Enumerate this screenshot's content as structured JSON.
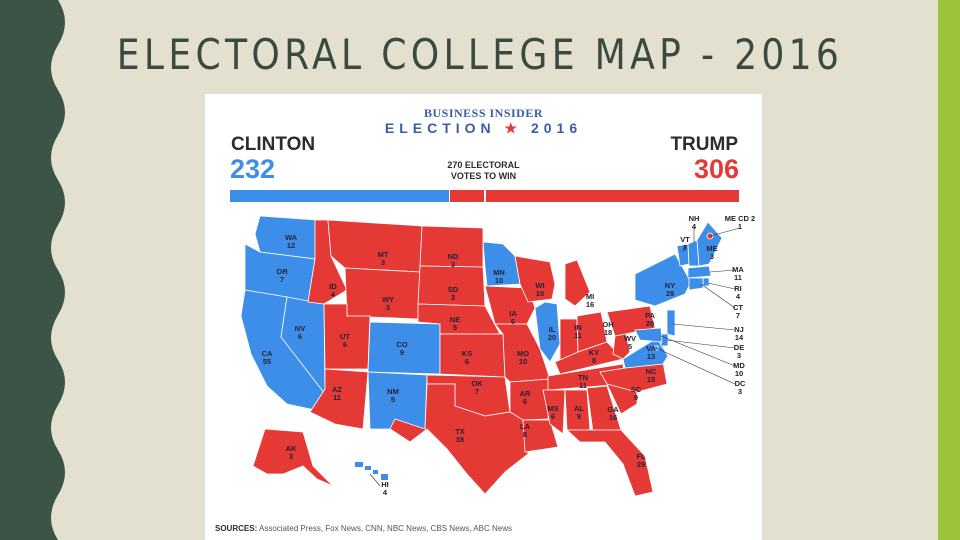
{
  "slide": {
    "title": "ELECTORAL COLLEGE MAP - 2016",
    "colors": {
      "background": "#e3e0cf",
      "title": "#3b4a3f",
      "left_band": "#3b5446",
      "right_bar": "#9bc33c"
    }
  },
  "infographic": {
    "publisher": "BUSINESS INSIDER",
    "election_word": "ELECTION",
    "election_year": "2016",
    "clinton": {
      "name": "CLINTON",
      "votes": "232",
      "color": "#3d8ee8"
    },
    "trump": {
      "name": "TRUMP",
      "votes": "306",
      "color": "#e53935"
    },
    "to_win_line1": "270 ELECTORAL",
    "to_win_line2": "VOTES TO WIN",
    "to_win_votes": 270,
    "total_votes": 538,
    "sources_label": "SOURCES:",
    "sources_text": "Associated Press, Fox News, CNN, NBC News, CBS News, ABC News"
  },
  "map": {
    "party_colors": {
      "D": "#3d8ee8",
      "R": "#e53935"
    },
    "states": [
      {
        "abbr": "WA",
        "ev": "12",
        "party": "D"
      },
      {
        "abbr": "OR",
        "ev": "7",
        "party": "D"
      },
      {
        "abbr": "CA",
        "ev": "55",
        "party": "D"
      },
      {
        "abbr": "NV",
        "ev": "6",
        "party": "D"
      },
      {
        "abbr": "ID",
        "ev": "4",
        "party": "R"
      },
      {
        "abbr": "MT",
        "ev": "3",
        "party": "R"
      },
      {
        "abbr": "WY",
        "ev": "3",
        "party": "R"
      },
      {
        "abbr": "UT",
        "ev": "6",
        "party": "R"
      },
      {
        "abbr": "CO",
        "ev": "9",
        "party": "D"
      },
      {
        "abbr": "AZ",
        "ev": "11",
        "party": "R"
      },
      {
        "abbr": "NM",
        "ev": "5",
        "party": "D"
      },
      {
        "abbr": "ND",
        "ev": "3",
        "party": "R"
      },
      {
        "abbr": "SD",
        "ev": "3",
        "party": "R"
      },
      {
        "abbr": "NE",
        "ev": "5",
        "party": "R"
      },
      {
        "abbr": "KS",
        "ev": "6",
        "party": "R"
      },
      {
        "abbr": "OK",
        "ev": "7",
        "party": "R"
      },
      {
        "abbr": "TX",
        "ev": "38",
        "party": "R"
      },
      {
        "abbr": "MN",
        "ev": "10",
        "party": "D"
      },
      {
        "abbr": "IA",
        "ev": "6",
        "party": "R"
      },
      {
        "abbr": "MO",
        "ev": "10",
        "party": "R"
      },
      {
        "abbr": "AR",
        "ev": "6",
        "party": "R"
      },
      {
        "abbr": "LA",
        "ev": "8",
        "party": "R"
      },
      {
        "abbr": "WI",
        "ev": "10",
        "party": "R"
      },
      {
        "abbr": "IL",
        "ev": "20",
        "party": "D"
      },
      {
        "abbr": "MI",
        "ev": "16",
        "party": "R"
      },
      {
        "abbr": "IN",
        "ev": "11",
        "party": "R"
      },
      {
        "abbr": "OH",
        "ev": "18",
        "party": "R"
      },
      {
        "abbr": "KY",
        "ev": "8",
        "party": "R"
      },
      {
        "abbr": "TN",
        "ev": "11",
        "party": "R"
      },
      {
        "abbr": "MS",
        "ev": "6",
        "party": "R"
      },
      {
        "abbr": "AL",
        "ev": "9",
        "party": "R"
      },
      {
        "abbr": "GA",
        "ev": "16",
        "party": "R"
      },
      {
        "abbr": "FL",
        "ev": "29",
        "party": "R"
      },
      {
        "abbr": "SC",
        "ev": "9",
        "party": "R"
      },
      {
        "abbr": "NC",
        "ev": "15",
        "party": "R"
      },
      {
        "abbr": "VA",
        "ev": "13",
        "party": "D"
      },
      {
        "abbr": "WV",
        "ev": "5",
        "party": "R"
      },
      {
        "abbr": "PA",
        "ev": "20",
        "party": "R"
      },
      {
        "abbr": "NY",
        "ev": "29",
        "party": "D"
      },
      {
        "abbr": "VT",
        "ev": "3",
        "party": "D"
      },
      {
        "abbr": "NH",
        "ev": "4",
        "party": "D"
      },
      {
        "abbr": "ME",
        "ev": "3",
        "party": "D"
      },
      {
        "abbr": "ME CD 2",
        "ev": "1",
        "party": "R"
      },
      {
        "abbr": "MA",
        "ev": "11",
        "party": "D"
      },
      {
        "abbr": "RI",
        "ev": "4",
        "party": "D"
      },
      {
        "abbr": "CT",
        "ev": "7",
        "party": "D"
      },
      {
        "abbr": "NJ",
        "ev": "14",
        "party": "D"
      },
      {
        "abbr": "DE",
        "ev": "3",
        "party": "D"
      },
      {
        "abbr": "MD",
        "ev": "10",
        "party": "D"
      },
      {
        "abbr": "DC",
        "ev": "3",
        "party": "D"
      },
      {
        "abbr": "AK",
        "ev": "3",
        "party": "R"
      },
      {
        "abbr": "HI",
        "ev": "4",
        "party": "D"
      }
    ]
  }
}
